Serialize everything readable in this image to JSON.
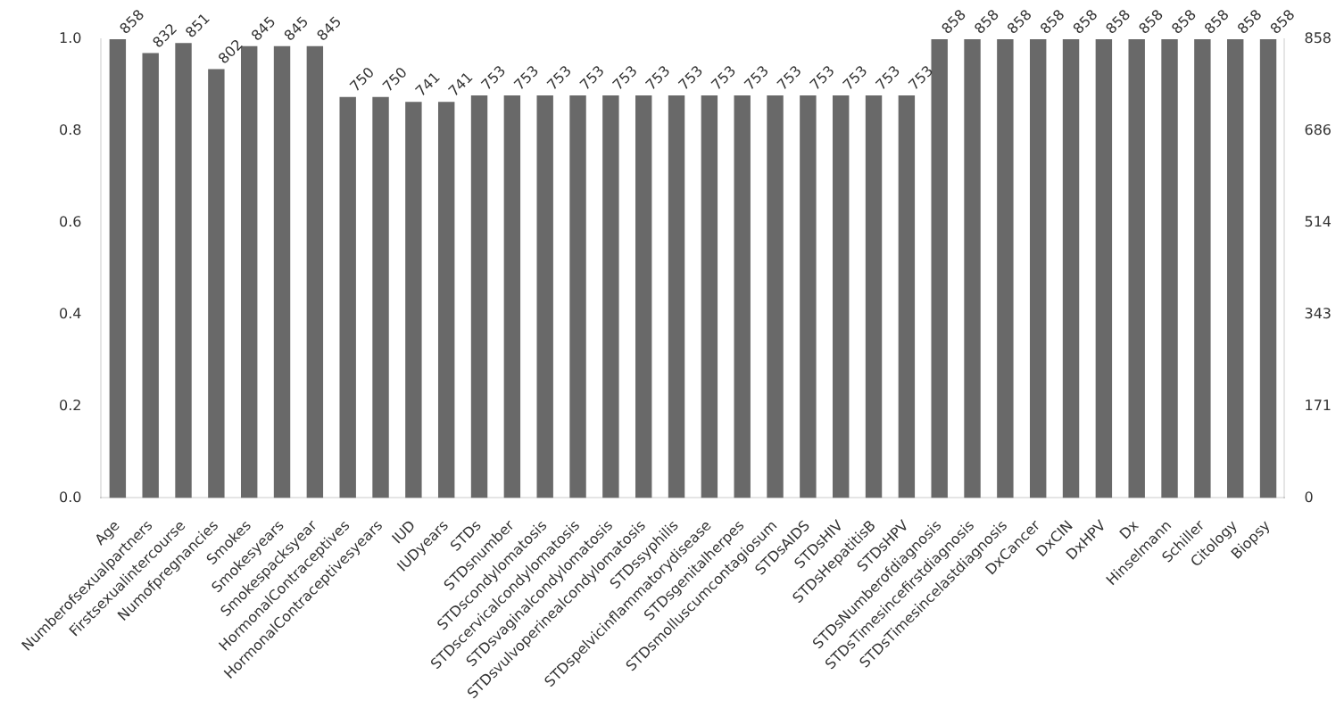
{
  "chart_data": {
    "type": "bar",
    "categories": [
      "Age",
      "Numberofsexualpartners",
      "Firstsexualintercourse",
      "Numofpregnancies",
      "Smokes",
      "Smokesyears",
      "Smokespacksyear",
      "HormonalContraceptives",
      "HormonalContraceptivesyears",
      "IUD",
      "IUDyears",
      "STDs",
      "STDsnumber",
      "STDscondylomatosis",
      "STDscervicalcondylomatosis",
      "STDsvaginalcondylomatosis",
      "STDsvulvoperinealcondylomatosis",
      "STDssyphilis",
      "STDspelvicinflammatorydisease",
      "STDsgenitalherpes",
      "STDsmolluscumcontagiosum",
      "STDsAIDS",
      "STDsHIV",
      "STDsHepatitisB",
      "STDsHPV",
      "STDsNumberofdiagnosis",
      "STDsTimesincefirstdiagnosis",
      "STDsTimesincelastdiagnosis",
      "DxCancer",
      "DxCIN",
      "DxHPV",
      "Dx",
      "Hinselmann",
      "Schiller",
      "Citology",
      "Biopsy"
    ],
    "series": [
      {
        "color": "#696969",
        "axis": "y2",
        "values": [
          858,
          832,
          851,
          802,
          845,
          845,
          845,
          750,
          750,
          741,
          741,
          753,
          753,
          753,
          753,
          753,
          753,
          753,
          753,
          753,
          753,
          753,
          753,
          753,
          753,
          858,
          858,
          858,
          858,
          858,
          858,
          858,
          858,
          858,
          858,
          858
        ]
      }
    ],
    "ylim": [
      0,
      1
    ],
    "yticks": [
      {
        "value": 0,
        "label": "0.0"
      },
      {
        "value": 0.2,
        "label": "0.2"
      },
      {
        "value": 0.4,
        "label": "0.4"
      },
      {
        "value": 0.6,
        "label": "0.6"
      },
      {
        "value": 0.8,
        "label": "0.8"
      },
      {
        "value": 1,
        "label": "1.0"
      }
    ],
    "y2lim": [
      0,
      858
    ],
    "y2ticks": [
      0,
      171,
      343,
      514,
      686,
      858
    ],
    "data_labels": true,
    "grid": false,
    "legend": false
  }
}
